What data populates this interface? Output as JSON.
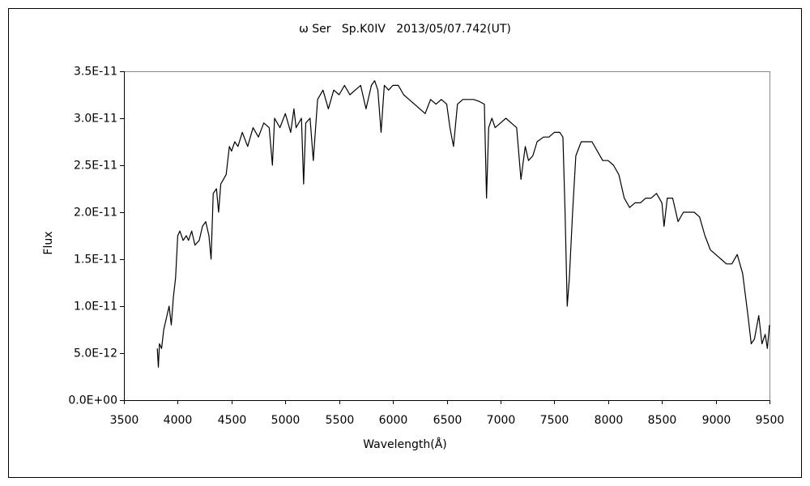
{
  "chart_data": {
    "type": "line",
    "title": "ω Ser   Sp.K0IV   2013/05/07.742(UT)",
    "x_label": "Wavelength(Å)",
    "y_label": "Flux",
    "color": "#000000",
    "grid": false,
    "x": [
      3810,
      3820,
      3830,
      3850,
      3870,
      3900,
      3920,
      3940,
      3960,
      3980,
      4000,
      4020,
      4050,
      4080,
      4100,
      4130,
      4160,
      4200,
      4230,
      4260,
      4290,
      4310,
      4330,
      4360,
      4380,
      4400,
      4450,
      4480,
      4500,
      4530,
      4560,
      4600,
      4650,
      4700,
      4750,
      4800,
      4850,
      4880,
      4900,
      4950,
      5000,
      5050,
      5080,
      5100,
      5150,
      5170,
      5190,
      5230,
      5260,
      5300,
      5350,
      5400,
      5450,
      5500,
      5550,
      5600,
      5650,
      5700,
      5750,
      5800,
      5830,
      5860,
      5890,
      5920,
      5960,
      6000,
      6050,
      6100,
      6150,
      6200,
      6250,
      6300,
      6350,
      6400,
      6450,
      6500,
      6530,
      6563,
      6600,
      6650,
      6700,
      6750,
      6800,
      6850,
      6870,
      6890,
      6920,
      6950,
      7000,
      7050,
      7100,
      7150,
      7190,
      7230,
      7260,
      7300,
      7340,
      7400,
      7450,
      7500,
      7550,
      7580,
      7600,
      7620,
      7640,
      7670,
      7700,
      7750,
      7800,
      7850,
      7900,
      7950,
      8000,
      8050,
      8100,
      8150,
      8200,
      8250,
      8300,
      8350,
      8400,
      8450,
      8500,
      8520,
      8550,
      8600,
      8650,
      8700,
      8750,
      8800,
      8850,
      8900,
      8950,
      9000,
      9050,
      9100,
      9150,
      9200,
      9250,
      9300,
      9330,
      9360,
      9400,
      9430,
      9460,
      9480,
      9500
    ],
    "values": [
      5.5e-12,
      3.5e-12,
      6e-12,
      5.5e-12,
      7.5e-12,
      9e-12,
      1e-11,
      8e-12,
      1.1e-11,
      1.3e-11,
      1.75e-11,
      1.8e-11,
      1.7e-11,
      1.75e-11,
      1.7e-11,
      1.8e-11,
      1.65e-11,
      1.7e-11,
      1.85e-11,
      1.9e-11,
      1.75e-11,
      1.5e-11,
      2.2e-11,
      2.25e-11,
      2e-11,
      2.3e-11,
      2.4e-11,
      2.7e-11,
      2.65e-11,
      2.75e-11,
      2.7e-11,
      2.85e-11,
      2.7e-11,
      2.9e-11,
      2.8e-11,
      2.95e-11,
      2.9e-11,
      2.5e-11,
      3e-11,
      2.9e-11,
      3.05e-11,
      2.85e-11,
      3.1e-11,
      2.9e-11,
      3e-11,
      2.3e-11,
      2.95e-11,
      3e-11,
      2.55e-11,
      3.2e-11,
      3.3e-11,
      3.1e-11,
      3.3e-11,
      3.25e-11,
      3.35e-11,
      3.25e-11,
      3.3e-11,
      3.35e-11,
      3.1e-11,
      3.35e-11,
      3.4e-11,
      3.3e-11,
      2.85e-11,
      3.35e-11,
      3.3e-11,
      3.35e-11,
      3.35e-11,
      3.25e-11,
      3.2e-11,
      3.15e-11,
      3.1e-11,
      3.05e-11,
      3.2e-11,
      3.15e-11,
      3.2e-11,
      3.15e-11,
      2.9e-11,
      2.7e-11,
      3.15e-11,
      3.2e-11,
      3.2e-11,
      3.2e-11,
      3.18e-11,
      3.15e-11,
      2.15e-11,
      2.9e-11,
      3e-11,
      2.9e-11,
      2.95e-11,
      3e-11,
      2.95e-11,
      2.9e-11,
      2.35e-11,
      2.7e-11,
      2.55e-11,
      2.6e-11,
      2.75e-11,
      2.8e-11,
      2.8e-11,
      2.85e-11,
      2.85e-11,
      2.8e-11,
      2e-11,
      1e-11,
      1.3e-11,
      2e-11,
      2.6e-11,
      2.75e-11,
      2.75e-11,
      2.75e-11,
      2.65e-11,
      2.55e-11,
      2.55e-11,
      2.5e-11,
      2.4e-11,
      2.15e-11,
      2.05e-11,
      2.1e-11,
      2.1e-11,
      2.15e-11,
      2.15e-11,
      2.2e-11,
      2.1e-11,
      1.85e-11,
      2.15e-11,
      2.15e-11,
      1.9e-11,
      2e-11,
      2e-11,
      2e-11,
      1.95e-11,
      1.75e-11,
      1.6e-11,
      1.55e-11,
      1.5e-11,
      1.45e-11,
      1.45e-11,
      1.55e-11,
      1.35e-11,
      9e-12,
      6e-12,
      6.5e-12,
      9e-12,
      6e-12,
      7e-12,
      5.5e-12,
      8e-12
    ],
    "xlim": [
      3500,
      9500
    ],
    "xticks": [
      3500,
      4000,
      4500,
      5000,
      5500,
      6000,
      6500,
      7000,
      7500,
      8000,
      8500,
      9000,
      9500
    ],
    "ylim": [
      0,
      3.5e-11
    ],
    "yticks": [
      {
        "value": 0,
        "label": "0.0E+00"
      },
      {
        "value": 5e-12,
        "label": "5.0E-12"
      },
      {
        "value": 1e-11,
        "label": "1.0E-11"
      },
      {
        "value": 1.5e-11,
        "label": "1.5E-11"
      },
      {
        "value": 2e-11,
        "label": "2.0E-11"
      },
      {
        "value": 2.5e-11,
        "label": "2.5E-11"
      },
      {
        "value": 3e-11,
        "label": "3.0E-11"
      },
      {
        "value": 3.5e-11,
        "label": "3.5E-11"
      }
    ]
  }
}
